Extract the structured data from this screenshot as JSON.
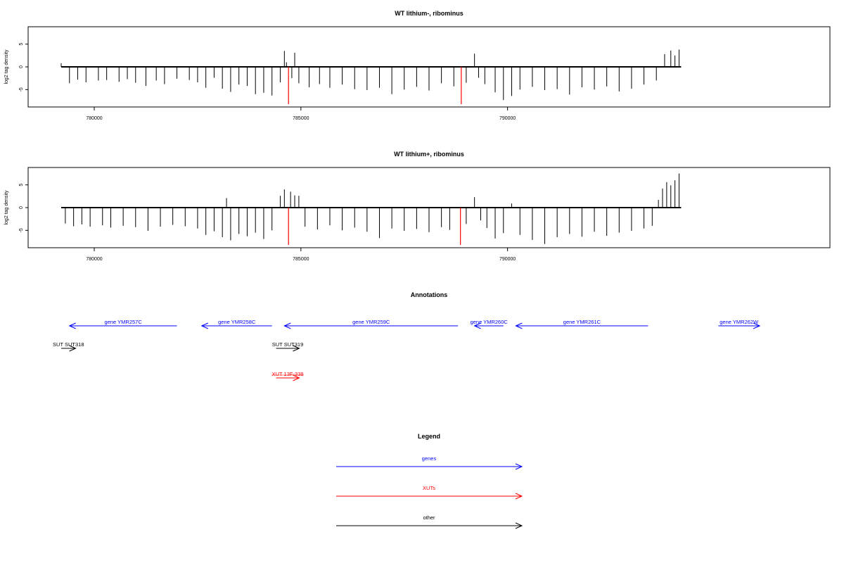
{
  "chart_data": [
    {
      "type": "bar",
      "title": "WT lithium-, ribominus",
      "xlabel": "",
      "ylabel": "log2 tag density",
      "xlim": [
        778400,
        797800
      ],
      "ylim": [
        -8.2,
        8.2
      ],
      "x_ticks": [
        780000,
        785000,
        790000
      ],
      "x_tick_labels": [
        "780000",
        "785000",
        "790000"
      ],
      "y_ticks": [
        -5,
        0,
        5
      ],
      "y_tick_labels": [
        "-5",
        "0",
        "5"
      ],
      "baseline_range": [
        779200,
        794200
      ],
      "colors": {
        "bars": "#000000",
        "highlight": "#ff0000"
      },
      "series": [
        {
          "values": [
            [
              779200,
              0.8
            ],
            [
              779400,
              -3.6
            ],
            [
              779600,
              -2.8
            ],
            [
              779800,
              -3.4
            ],
            [
              780100,
              -3.0
            ],
            [
              780300,
              -2.9
            ],
            [
              780600,
              -3.3
            ],
            [
              780800,
              -2.7
            ],
            [
              781000,
              -3.5
            ],
            [
              781250,
              -4.2
            ],
            [
              781500,
              -3.0
            ],
            [
              781700,
              -3.8
            ],
            [
              782000,
              -2.6
            ],
            [
              782300,
              -2.9
            ],
            [
              782500,
              -3.4
            ],
            [
              782700,
              -4.6
            ],
            [
              782900,
              -2.4
            ],
            [
              783100,
              -4.8
            ],
            [
              783300,
              -5.5
            ],
            [
              783500,
              -3.9
            ],
            [
              783700,
              -4.2
            ],
            [
              783900,
              -6.0
            ],
            [
              784100,
              -5.7
            ],
            [
              784300,
              -6.3
            ],
            [
              784500,
              -3.4
            ],
            [
              784600,
              3.5
            ],
            [
              784650,
              1.0
            ],
            [
              784700,
              -8.2
            ],
            [
              784780,
              -2.5
            ],
            [
              784850,
              3.1
            ],
            [
              784950,
              -3.6
            ],
            [
              785200,
              -4.5
            ],
            [
              785450,
              -3.8
            ],
            [
              785700,
              -4.6
            ],
            [
              786000,
              -3.9
            ],
            [
              786300,
              -4.9
            ],
            [
              786600,
              -5.1
            ],
            [
              786900,
              -4.6
            ],
            [
              787200,
              -6.0
            ],
            [
              787500,
              -5.0
            ],
            [
              787800,
              -4.4
            ],
            [
              788100,
              -5.2
            ],
            [
              788400,
              -3.6
            ],
            [
              788700,
              -4.3
            ],
            [
              788880,
              -8.2
            ],
            [
              789000,
              -3.5
            ],
            [
              789200,
              2.9
            ],
            [
              789300,
              -2.4
            ],
            [
              789450,
              -3.8
            ],
            [
              789700,
              -5.6
            ],
            [
              789900,
              -7.3
            ],
            [
              790100,
              -6.4
            ],
            [
              790300,
              -5.0
            ],
            [
              790600,
              -4.4
            ],
            [
              790900,
              -5.1
            ],
            [
              791200,
              -4.9
            ],
            [
              791500,
              -6.1
            ],
            [
              791800,
              -4.5
            ],
            [
              792100,
              -5.0
            ],
            [
              792400,
              -4.3
            ],
            [
              792700,
              -5.4
            ],
            [
              793000,
              -4.8
            ],
            [
              793300,
              -3.9
            ],
            [
              793600,
              -3.0
            ],
            [
              793800,
              2.8
            ],
            [
              793950,
              3.6
            ],
            [
              794050,
              2.5
            ],
            [
              794150,
              3.8
            ]
          ]
        }
      ]
    },
    {
      "type": "bar",
      "title": "WT lithium+, ribominus",
      "xlabel": "",
      "ylabel": "log2 tag density",
      "xlim": [
        778400,
        797800
      ],
      "ylim": [
        -8.2,
        8.2
      ],
      "x_ticks": [
        780000,
        785000,
        790000
      ],
      "x_tick_labels": [
        "780000",
        "785000",
        "790000"
      ],
      "y_ticks": [
        -5,
        0,
        5
      ],
      "y_tick_labels": [
        "-5",
        "0",
        "5"
      ],
      "baseline_range": [
        779200,
        794200
      ],
      "colors": {
        "bars": "#000000",
        "highlight": "#ff0000"
      },
      "series": [
        {
          "values": [
            [
              779300,
              -3.5
            ],
            [
              779500,
              -4.1
            ],
            [
              779700,
              -3.7
            ],
            [
              779900,
              -4.2
            ],
            [
              780200,
              -3.9
            ],
            [
              780400,
              -4.4
            ],
            [
              780700,
              -4.0
            ],
            [
              781000,
              -4.3
            ],
            [
              781300,
              -5.1
            ],
            [
              781600,
              -4.2
            ],
            [
              781900,
              -3.8
            ],
            [
              782200,
              -4.1
            ],
            [
              782500,
              -4.6
            ],
            [
              782700,
              -6.0
            ],
            [
              782900,
              -5.2
            ],
            [
              783100,
              -6.5
            ],
            [
              783200,
              2.1
            ],
            [
              783300,
              -7.2
            ],
            [
              783500,
              -5.8
            ],
            [
              783700,
              -6.3
            ],
            [
              783900,
              -5.5
            ],
            [
              784100,
              -6.9
            ],
            [
              784300,
              -5.0
            ],
            [
              784500,
              2.6
            ],
            [
              784600,
              4.0
            ],
            [
              784700,
              -8.2
            ],
            [
              784750,
              3.5
            ],
            [
              784850,
              2.7
            ],
            [
              784950,
              2.6
            ],
            [
              785100,
              -4.2
            ],
            [
              785400,
              -4.8
            ],
            [
              785700,
              -3.9
            ],
            [
              786000,
              -5.0
            ],
            [
              786300,
              -4.4
            ],
            [
              786600,
              -5.3
            ],
            [
              786900,
              -6.7
            ],
            [
              787200,
              -4.6
            ],
            [
              787500,
              -5.1
            ],
            [
              787800,
              -4.7
            ],
            [
              788100,
              -5.4
            ],
            [
              788400,
              -4.3
            ],
            [
              788600,
              -4.9
            ],
            [
              788860,
              -8.2
            ],
            [
              789000,
              -3.6
            ],
            [
              789200,
              2.3
            ],
            [
              789350,
              -2.8
            ],
            [
              789500,
              -4.5
            ],
            [
              789700,
              -6.8
            ],
            [
              789900,
              -5.6
            ],
            [
              790100,
              0.9
            ],
            [
              790300,
              -6.0
            ],
            [
              790600,
              -7.1
            ],
            [
              790900,
              -8.0
            ],
            [
              791200,
              -6.5
            ],
            [
              791500,
              -5.8
            ],
            [
              791800,
              -6.4
            ],
            [
              792100,
              -5.3
            ],
            [
              792400,
              -6.2
            ],
            [
              792700,
              -5.5
            ],
            [
              793000,
              -5.1
            ],
            [
              793300,
              -4.6
            ],
            [
              793500,
              -4.0
            ],
            [
              793650,
              1.7
            ],
            [
              793750,
              4.2
            ],
            [
              793850,
              5.6
            ],
            [
              793950,
              4.9
            ],
            [
              794050,
              6.0
            ],
            [
              794150,
              7.5
            ]
          ]
        }
      ]
    },
    {
      "type": "table",
      "title": "Annotations",
      "xlim": [
        778400,
        797800
      ],
      "colors": {
        "genes": "#0000ff",
        "XUTs": "#ff0000",
        "other": "#000000"
      },
      "items": [
        {
          "label": "gene YMR257C",
          "start": 782000,
          "end": 779400,
          "category": "genes",
          "row": 0
        },
        {
          "label": "gene YMR258C",
          "start": 784300,
          "end": 782600,
          "category": "genes",
          "row": 0
        },
        {
          "label": "gene YMR259C",
          "start": 788800,
          "end": 784600,
          "category": "genes",
          "row": 0
        },
        {
          "label": "gene YMR260C",
          "start": 789900,
          "end": 789200,
          "category": "genes",
          "row": 0
        },
        {
          "label": "gene YMR261C",
          "start": 793400,
          "end": 790200,
          "category": "genes",
          "row": 0
        },
        {
          "label": "gene YMR262W",
          "start": 795100,
          "end": 796100,
          "category": "genes",
          "row": 0
        },
        {
          "label": "SUT SUT318",
          "start": 779200,
          "end": 779550,
          "category": "other",
          "row": 1
        },
        {
          "label": "SUT SUT319",
          "start": 784400,
          "end": 784960,
          "category": "other",
          "row": 1
        },
        {
          "label": "XUT 13F-338",
          "start": 784400,
          "end": 784960,
          "category": "XUTs",
          "row": 2
        }
      ]
    }
  ],
  "legend": {
    "title": "Legend",
    "items": [
      {
        "label": "genes",
        "color": "#0000ff"
      },
      {
        "label": "XUTs",
        "color": "#ff0000"
      },
      {
        "label": "other",
        "color": "#000000"
      }
    ]
  }
}
